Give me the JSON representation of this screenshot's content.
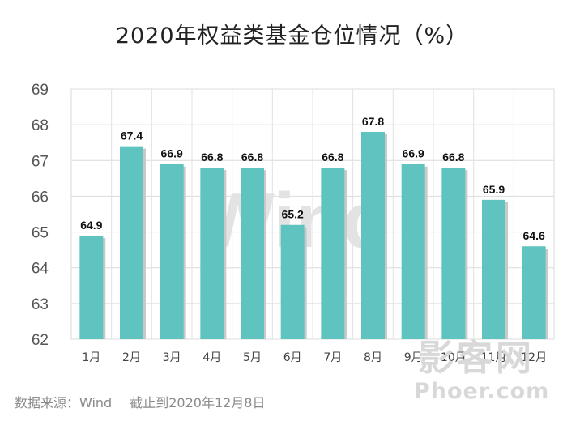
{
  "chart_data": {
    "type": "bar",
    "title": "2020年权益类基金仓位情况（%）",
    "categories": [
      "1月",
      "2月",
      "3月",
      "4月",
      "5月",
      "6月",
      "7月",
      "8月",
      "9月",
      "10月",
      "11月",
      "12月"
    ],
    "values": [
      64.9,
      67.4,
      66.9,
      66.8,
      66.8,
      65.2,
      66.8,
      67.8,
      66.9,
      66.8,
      65.9,
      64.6
    ],
    "data_labels": [
      "64.9",
      "67.4",
      "66.9",
      "66.8",
      "66.8",
      "65.2",
      "66.8",
      "67.8",
      "66.9",
      "66.8",
      "65.9",
      "64.6"
    ],
    "ylim": [
      62,
      69
    ],
    "yticks": [
      "62",
      "63",
      "64",
      "65",
      "66",
      "67",
      "68",
      "69"
    ],
    "xlabel": "",
    "ylabel": "",
    "grid": true,
    "bar_color": "#5fc4c0"
  },
  "source": {
    "label": "数据来源：Wind",
    "date": "截止到2020年12月8日"
  },
  "watermark": {
    "chart_text": "Wind",
    "logo_cn": "影客网",
    "logo_en": "Phoer.com"
  }
}
